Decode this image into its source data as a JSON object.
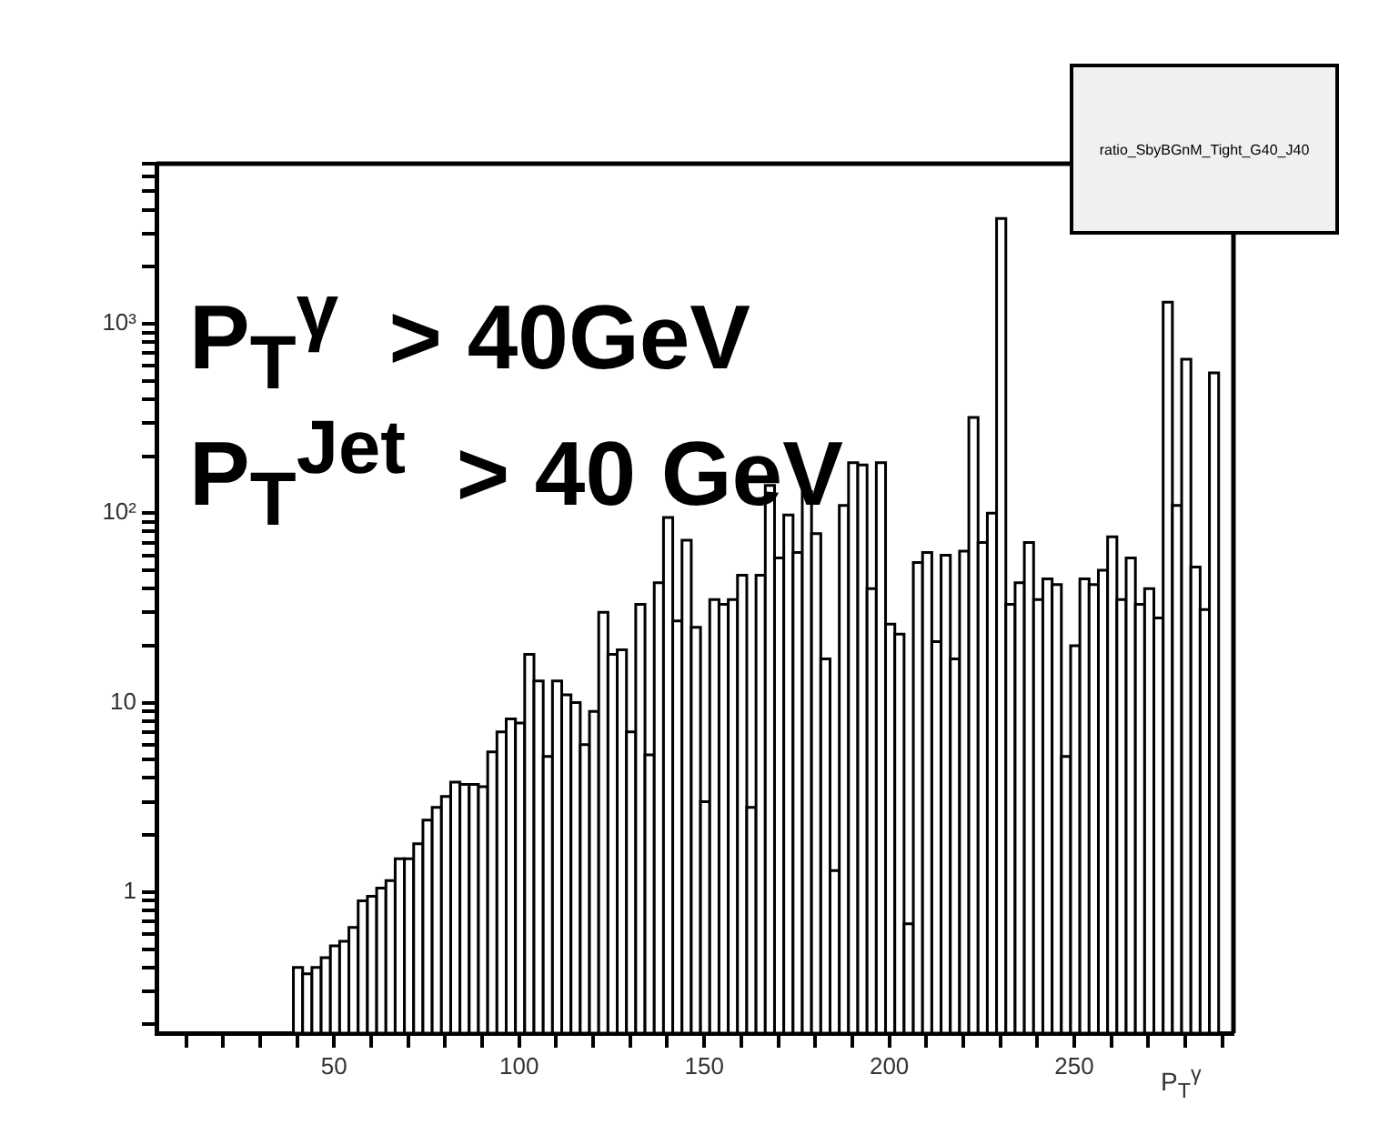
{
  "chart_data": {
    "type": "histogram",
    "title": "ratio_SbyBGnM_Tight_G40_J40",
    "xlabel": "P$_{T}$$^{γ}$",
    "annotations": [
      "P$_{T}$$^{γ}$  > 40GeV",
      "P$_{T}$$^{Jet}$  > 40 GeV"
    ],
    "bins": [
      39,
      41.5,
      44,
      46.5,
      49,
      51.5,
      54,
      56.5,
      59,
      61.5,
      64,
      66.5,
      69,
      71.5,
      74,
      76.5,
      79,
      81.5,
      84,
      86.5,
      89,
      91.5,
      94,
      96.5,
      99,
      101.5,
      104,
      106.5,
      109,
      111.5,
      114,
      116.5,
      119,
      121.5,
      124,
      126.5,
      129,
      131.5,
      134,
      136.5,
      139,
      141.5,
      144,
      146.5,
      149,
      151.5,
      154,
      156.5,
      159,
      161.5,
      164,
      166.5,
      169,
      171.5,
      174,
      176.5,
      179,
      181.5,
      184,
      186.5,
      189,
      191.5,
      194,
      196.5,
      199,
      201.5,
      204,
      206.5,
      209,
      211.5,
      214,
      216.5,
      219,
      221.5,
      224,
      226.5,
      229,
      231.5,
      234,
      236.5,
      239,
      241.5,
      244,
      246.5,
      249,
      251.5,
      254,
      256.5,
      259,
      261.5,
      264,
      266.5,
      269,
      271.5,
      274,
      276.5,
      279,
      281.5,
      284,
      286.5,
      289
    ],
    "values": [
      0.4,
      0.37,
      0.4,
      0.45,
      0.52,
      0.55,
      0.65,
      0.9,
      0.95,
      1.05,
      1.15,
      1.5,
      1.5,
      1.8,
      2.4,
      2.8,
      3.2,
      3.8,
      3.7,
      3.7,
      3.6,
      5.5,
      7,
      8.2,
      7.8,
      18,
      13,
      5.2,
      13,
      11,
      10,
      6,
      9,
      30,
      18,
      19,
      7,
      33,
      5.3,
      43,
      95,
      27,
      72,
      25,
      3,
      35,
      33,
      35,
      47,
      2.8,
      47,
      140,
      58,
      98,
      62,
      130,
      78,
      17,
      1.3,
      110,
      185,
      180,
      40,
      185,
      26,
      23,
      0.68,
      55,
      62,
      21,
      60,
      17,
      63,
      320,
      70,
      100,
      3600,
      33,
      43,
      70,
      35,
      45,
      42,
      5.2,
      20,
      45,
      42,
      50,
      75,
      35,
      58,
      33,
      40,
      28,
      1300,
      110,
      650,
      52,
      31,
      550
    ],
    "color": "#000000",
    "log": "y",
    "grid": false,
    "legend": false,
    "xlim": [
      2,
      293
    ],
    "xticks": [
      {
        "value": 10,
        "label": null
      },
      {
        "value": 20,
        "label": null
      },
      {
        "value": 30,
        "label": null
      },
      {
        "value": 40,
        "label": null
      },
      50,
      {
        "value": 60,
        "label": null
      },
      {
        "value": 70,
        "label": null
      },
      {
        "value": 80,
        "label": null
      },
      {
        "value": 90,
        "label": null
      },
      100,
      {
        "value": 110,
        "label": null
      },
      {
        "value": 120,
        "label": null
      },
      {
        "value": 130,
        "label": null
      },
      {
        "value": 140,
        "label": null
      },
      150,
      {
        "value": 160,
        "label": null
      },
      {
        "value": 170,
        "label": null
      },
      {
        "value": 180,
        "label": null
      },
      {
        "value": 190,
        "label": null
      },
      200,
      {
        "value": 210,
        "label": null
      },
      {
        "value": 220,
        "label": null
      },
      {
        "value": 230,
        "label": null
      },
      {
        "value": 240,
        "label": null
      },
      250,
      {
        "value": 260,
        "label": null
      },
      {
        "value": 270,
        "label": null
      },
      {
        "value": 280,
        "label": null
      },
      {
        "value": 290,
        "label": null
      }
    ],
    "ylim": [
      0.18,
      7000
    ],
    "yticks": [
      {
        "value": 0.2,
        "label": null
      },
      {
        "value": 0.3,
        "label": null
      },
      {
        "value": 0.4,
        "label": null
      },
      {
        "value": 0.5,
        "label": null
      },
      {
        "value": 0.6,
        "label": null
      },
      {
        "value": 0.7,
        "label": null
      },
      {
        "value": 0.8,
        "label": null
      },
      {
        "value": 0.9,
        "label": null
      },
      1,
      {
        "value": 2,
        "label": null
      },
      {
        "value": 3,
        "label": null
      },
      {
        "value": 4,
        "label": null
      },
      {
        "value": 5,
        "label": null
      },
      {
        "value": 6,
        "label": null
      },
      {
        "value": 7,
        "label": null
      },
      {
        "value": 8,
        "label": null
      },
      {
        "value": 9,
        "label": null
      },
      10,
      {
        "value": 20,
        "label": null
      },
      {
        "value": 30,
        "label": null
      },
      {
        "value": 40,
        "label": null
      },
      {
        "value": 50,
        "label": null
      },
      {
        "value": 60,
        "label": null
      },
      {
        "value": 70,
        "label": null
      },
      {
        "value": 80,
        "label": null
      },
      {
        "value": 90,
        "label": null
      },
      {
        "value": 100,
        "label": "10²"
      },
      {
        "value": 200,
        "label": null
      },
      {
        "value": 300,
        "label": null
      },
      {
        "value": 400,
        "label": null
      },
      {
        "value": 500,
        "label": null
      },
      {
        "value": 600,
        "label": null
      },
      {
        "value": 700,
        "label": null
      },
      {
        "value": 800,
        "label": null
      },
      {
        "value": 900,
        "label": null
      },
      {
        "value": 1000,
        "label": "10³"
      },
      {
        "value": 2000,
        "label": null
      },
      {
        "value": 3000,
        "label": null
      },
      {
        "value": 4000,
        "label": null
      },
      {
        "value": 5000,
        "label": null
      },
      {
        "value": 6000,
        "label": null
      },
      {
        "value": 7000,
        "label": null
      }
    ]
  }
}
